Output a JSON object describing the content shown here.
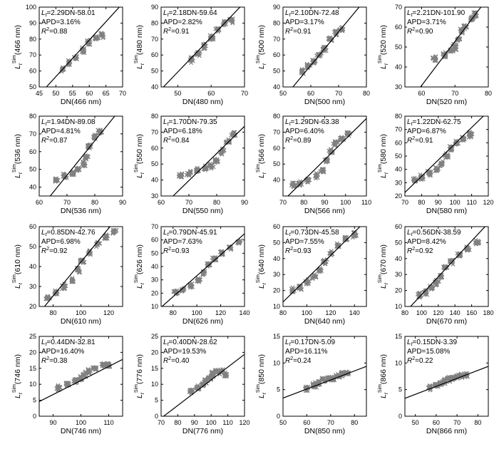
{
  "figure": {
    "layout": "4x4 grid of scatter plots with fitted regression lines"
  },
  "style": {
    "point_color": "#808080",
    "line_color": "#000000",
    "axis_color": "#000000",
    "marker": "x"
  },
  "chart_data": [
    {
      "id": "p466",
      "type": "scatter",
      "xlabel": "DN(466 nm)",
      "ylabel": "(466 nm)",
      "equation": "=2.29DN-58.01",
      "apd": "APD=3.16%",
      "r2": "=0.88",
      "slope": 2.29,
      "intercept": -58.01,
      "xlim": [
        45,
        70
      ],
      "ylim": [
        50,
        100
      ],
      "xticks": [
        45,
        50,
        55,
        60,
        65,
        70
      ],
      "yticks": [
        50,
        60,
        70,
        80,
        90,
        100
      ],
      "cluster": [
        [
          52,
          61
        ],
        [
          54,
          65
        ],
        [
          56,
          68
        ],
        [
          58,
          73
        ],
        [
          60,
          78
        ],
        [
          62,
          81
        ],
        [
          64,
          82
        ]
      ]
    },
    {
      "id": "p480",
      "type": "scatter",
      "xlabel": "DN(480 nm)",
      "ylabel": "(480 nm)",
      "equation": "=2.18DN-59.64",
      "apd": "APD=2.82%",
      "r2": "=0.91",
      "slope": 2.18,
      "intercept": -59.64,
      "xlim": [
        45,
        70
      ],
      "ylim": [
        40,
        90
      ],
      "xticks": [
        50,
        60,
        70
      ],
      "yticks": [
        40,
        50,
        60,
        70,
        80,
        90
      ],
      "cluster": [
        [
          54,
          57
        ],
        [
          56,
          61
        ],
        [
          58,
          66
        ],
        [
          60,
          71
        ],
        [
          62,
          76
        ],
        [
          64,
          80
        ],
        [
          66,
          82
        ]
      ]
    },
    {
      "id": "p500",
      "type": "scatter",
      "xlabel": "DN(500 nm)",
      "ylabel": "(500 nm)",
      "equation": "=2.10DN-72.48",
      "apd": "APD=3.17%",
      "r2": "=0.91",
      "slope": 2.1,
      "intercept": -72.48,
      "xlim": [
        50,
        80
      ],
      "ylim": [
        40,
        90
      ],
      "xticks": [
        50,
        60,
        70,
        80
      ],
      "yticks": [
        40,
        50,
        60,
        70,
        80,
        90
      ],
      "cluster": [
        [
          57,
          50
        ],
        [
          59,
          53
        ],
        [
          61,
          56
        ],
        [
          63,
          60
        ],
        [
          65,
          64
        ],
        [
          67,
          70
        ],
        [
          69,
          74
        ],
        [
          71,
          76
        ]
      ]
    },
    {
      "id": "p520",
      "type": "scatter",
      "xlabel": "DN(520 nm)",
      "ylabel": "(520 nm)",
      "equation": "=2.21DN-101.90",
      "apd": "APD=3.71%",
      "r2": "=0.90",
      "slope": 2.21,
      "intercept": -101.9,
      "xlim": [
        55,
        80
      ],
      "ylim": [
        30,
        70
      ],
      "xticks": [
        60,
        70,
        80
      ],
      "yticks": [
        30,
        40,
        50,
        60,
        70
      ],
      "cluster": [
        [
          64,
          44
        ],
        [
          67,
          46
        ],
        [
          69,
          48
        ],
        [
          70,
          50
        ],
        [
          71,
          54
        ],
        [
          72,
          58
        ],
        [
          73,
          60
        ],
        [
          75,
          64
        ],
        [
          76,
          66
        ]
      ]
    },
    {
      "id": "p536",
      "type": "scatter",
      "xlabel": "DN(536 nm)",
      "ylabel": "(536 nm)",
      "equation": "=1.94DN-89.08",
      "apd": "APD=4.81%",
      "r2": "=0.87",
      "slope": 1.94,
      "intercept": -89.08,
      "xlim": [
        60,
        90
      ],
      "ylim": [
        35,
        80
      ],
      "xticks": [
        60,
        70,
        80,
        90
      ],
      "yticks": [
        40,
        50,
        60,
        70,
        80
      ],
      "cluster": [
        [
          66,
          44
        ],
        [
          69,
          46
        ],
        [
          72,
          48
        ],
        [
          74,
          50
        ],
        [
          76,
          53
        ],
        [
          77,
          57
        ],
        [
          78,
          63
        ],
        [
          80,
          68
        ],
        [
          82,
          71
        ]
      ]
    },
    {
      "id": "p550",
      "type": "scatter",
      "xlabel": "DN(550 nm)",
      "ylabel": "(550 nm)",
      "equation": "=1.70DN-79.35",
      "apd": "APD=6.18%",
      "r2": "=0.84",
      "slope": 1.7,
      "intercept": -79.35,
      "xlim": [
        60,
        90
      ],
      "ylim": [
        30,
        80
      ],
      "xticks": [
        60,
        70,
        80,
        90
      ],
      "yticks": [
        30,
        40,
        50,
        60,
        70,
        80
      ],
      "cluster": [
        [
          67,
          43
        ],
        [
          70,
          44
        ],
        [
          73,
          46
        ],
        [
          76,
          47
        ],
        [
          78,
          49
        ],
        [
          80,
          52
        ],
        [
          82,
          58
        ],
        [
          84,
          64
        ],
        [
          86,
          69
        ]
      ]
    },
    {
      "id": "p566",
      "type": "scatter",
      "xlabel": "DN(566 nm)",
      "ylabel": "(566 nm)",
      "equation": "=1.29DN-63.38",
      "apd": "APD=6.40%",
      "r2": "=0.89",
      "slope": 1.29,
      "intercept": -63.38,
      "xlim": [
        70,
        110
      ],
      "ylim": [
        30,
        80
      ],
      "xticks": [
        70,
        80,
        90,
        100,
        110
      ],
      "yticks": [
        40,
        50,
        60,
        70,
        80
      ],
      "cluster": [
        [
          75,
          37
        ],
        [
          78,
          38
        ],
        [
          82,
          40
        ],
        [
          86,
          43
        ],
        [
          89,
          46
        ],
        [
          91,
          52
        ],
        [
          93,
          58
        ],
        [
          95,
          63
        ],
        [
          98,
          66
        ],
        [
          101,
          69
        ]
      ]
    },
    {
      "id": "p580",
      "type": "scatter",
      "xlabel": "DN(580 nm)",
      "ylabel": "(580 nm)",
      "equation": "=1.22DN-62.75",
      "apd": "APD=6.87%",
      "r2": "=0.91",
      "slope": 1.22,
      "intercept": -62.75,
      "xlim": [
        70,
        120
      ],
      "ylim": [
        20,
        80
      ],
      "xticks": [
        70,
        80,
        90,
        100,
        110,
        120
      ],
      "yticks": [
        20,
        30,
        40,
        50,
        60,
        70,
        80
      ],
      "cluster": [
        [
          76,
          32
        ],
        [
          80,
          34
        ],
        [
          85,
          37
        ],
        [
          89,
          40
        ],
        [
          92,
          44
        ],
        [
          95,
          50
        ],
        [
          98,
          56
        ],
        [
          101,
          60
        ],
        [
          105,
          63
        ],
        [
          109,
          66
        ]
      ]
    },
    {
      "id": "p610",
      "type": "scatter",
      "xlabel": "DN(610 nm)",
      "ylabel": "(610 nm)",
      "equation": "=0.85DN-42.76",
      "apd": "APD=6.98%",
      "r2": "=0.92",
      "slope": 0.85,
      "intercept": -42.76,
      "xlim": [
        70,
        130
      ],
      "ylim": [
        20,
        60
      ],
      "xticks": [
        80,
        100,
        120
      ],
      "yticks": [
        20,
        30,
        40,
        50,
        60
      ],
      "cluster": [
        [
          76,
          24
        ],
        [
          82,
          27
        ],
        [
          88,
          30
        ],
        [
          94,
          33
        ],
        [
          98,
          38
        ],
        [
          101,
          43
        ],
        [
          106,
          47
        ],
        [
          112,
          51
        ],
        [
          118,
          55
        ],
        [
          124,
          58
        ]
      ]
    },
    {
      "id": "p626",
      "type": "scatter",
      "xlabel": "DN(626 nm)",
      "ylabel": "(626 nm)",
      "equation": "=0.79DN-45.91",
      "apd": "APD=7.63%",
      "r2": "=0.93",
      "slope": 0.79,
      "intercept": -45.91,
      "xlim": [
        70,
        140
      ],
      "ylim": [
        10,
        70
      ],
      "xticks": [
        80,
        100,
        120,
        140
      ],
      "yticks": [
        10,
        20,
        30,
        40,
        50,
        60,
        70
      ],
      "cluster": [
        [
          82,
          21
        ],
        [
          88,
          23
        ],
        [
          95,
          26
        ],
        [
          101,
          30
        ],
        [
          106,
          35
        ],
        [
          110,
          41
        ],
        [
          115,
          46
        ],
        [
          121,
          50
        ],
        [
          128,
          54
        ],
        [
          135,
          58
        ]
      ]
    },
    {
      "id": "p640",
      "type": "scatter",
      "xlabel": "DN(640 nm)",
      "ylabel": "(640 nm)",
      "equation": "=0.73DN-45.58",
      "apd": "APD=7.55%",
      "r2": "=0.93",
      "slope": 0.73,
      "intercept": -45.58,
      "xlim": [
        80,
        150
      ],
      "ylim": [
        10,
        60
      ],
      "xticks": [
        80,
        100,
        120,
        140
      ],
      "yticks": [
        10,
        20,
        30,
        40,
        50,
        60
      ],
      "cluster": [
        [
          88,
          20
        ],
        [
          94,
          22
        ],
        [
          100,
          25
        ],
        [
          106,
          29
        ],
        [
          111,
          33
        ],
        [
          115,
          38
        ],
        [
          120,
          43
        ],
        [
          126,
          48
        ],
        [
          133,
          52
        ],
        [
          140,
          55
        ]
      ]
    },
    {
      "id": "p670",
      "type": "scatter",
      "xlabel": "DN(670 nm)",
      "ylabel": "(670 nm)",
      "equation": "=0.56DN-38.59",
      "apd": "APD=8.42%",
      "r2": "=0.92",
      "slope": 0.56,
      "intercept": -38.59,
      "xlim": [
        80,
        180
      ],
      "ylim": [
        10,
        60
      ],
      "xticks": [
        80,
        100,
        120,
        140,
        160,
        180
      ],
      "yticks": [
        10,
        20,
        30,
        40,
        50,
        60
      ],
      "cluster": [
        [
          98,
          17
        ],
        [
          105,
          19
        ],
        [
          112,
          22
        ],
        [
          118,
          25
        ],
        [
          123,
          29
        ],
        [
          129,
          34
        ],
        [
          136,
          38
        ],
        [
          145,
          42
        ],
        [
          155,
          46
        ],
        [
          167,
          50
        ]
      ]
    },
    {
      "id": "p746",
      "type": "scatter",
      "xlabel": "DN(746 nm)",
      "ylabel": "(746 nm)",
      "equation": "=0.44DN-32.81",
      "apd": "APD=16.40%",
      "r2": "=0.38",
      "slope": 0.44,
      "intercept": -32.81,
      "xlim": [
        85,
        115
      ],
      "ylim": [
        0,
        25
      ],
      "xticks": [
        90,
        100,
        110
      ],
      "yticks": [
        0,
        5,
        10,
        15,
        20,
        25
      ],
      "cluster": [
        [
          92,
          9
        ],
        [
          95,
          10
        ],
        [
          98,
          11
        ],
        [
          100,
          12
        ],
        [
          101,
          13
        ],
        [
          103,
          14
        ],
        [
          105,
          15
        ],
        [
          108,
          16
        ],
        [
          110,
          16
        ]
      ]
    },
    {
      "id": "p776",
      "type": "scatter",
      "xlabel": "DN(776 nm)",
      "ylabel": "(776 nm)",
      "equation": "=0.40DN-28.62",
      "apd": "APD=19.53%",
      "r2": "=0.40",
      "slope": 0.4,
      "intercept": -28.62,
      "xlim": [
        70,
        120
      ],
      "ylim": [
        0,
        25
      ],
      "xticks": [
        70,
        80,
        90,
        100,
        110,
        120
      ],
      "yticks": [
        0,
        5,
        10,
        15,
        20,
        25
      ],
      "cluster": [
        [
          88,
          8
        ],
        [
          92,
          9
        ],
        [
          95,
          10
        ],
        [
          97,
          11
        ],
        [
          99,
          12
        ],
        [
          101,
          13
        ],
        [
          103,
          14
        ],
        [
          106,
          14
        ],
        [
          109,
          13
        ]
      ]
    },
    {
      "id": "p850",
      "type": "scatter",
      "xlabel": "DN(850 nm)",
      "ylabel": "(850 nm)",
      "equation": "=0.17DN-5.09",
      "apd": "APD=16.11%",
      "r2": "=0.24",
      "slope": 0.17,
      "intercept": -5.09,
      "xlim": [
        50,
        85
      ],
      "ylim": [
        0,
        15
      ],
      "xticks": [
        50,
        60,
        70,
        80
      ],
      "yticks": [
        0,
        5,
        10,
        15
      ],
      "cluster": [
        [
          60,
          5.2
        ],
        [
          63,
          5.8
        ],
        [
          65,
          6.2
        ],
        [
          67,
          6.8
        ],
        [
          69,
          7.2
        ],
        [
          71,
          7.0
        ],
        [
          73,
          7.6
        ],
        [
          75,
          8.0
        ],
        [
          77,
          8.2
        ]
      ]
    },
    {
      "id": "p866",
      "type": "scatter",
      "xlabel": "DN(866 nm)",
      "ylabel": "(866 nm)",
      "equation": "=0.15DN-3.39",
      "apd": "APD=15.08%",
      "r2": "=0.22",
      "slope": 0.15,
      "intercept": -3.39,
      "xlim": [
        45,
        85
      ],
      "ylim": [
        0,
        15
      ],
      "xticks": [
        50,
        60,
        70,
        80
      ],
      "yticks": [
        0,
        5,
        10,
        15
      ],
      "cluster": [
        [
          57,
          5.4
        ],
        [
          60,
          5.8
        ],
        [
          62,
          6.2
        ],
        [
          64,
          6.6
        ],
        [
          66,
          7.0
        ],
        [
          68,
          7.2
        ],
        [
          70,
          7.4
        ],
        [
          72,
          7.6
        ],
        [
          74,
          7.8
        ]
      ]
    }
  ]
}
